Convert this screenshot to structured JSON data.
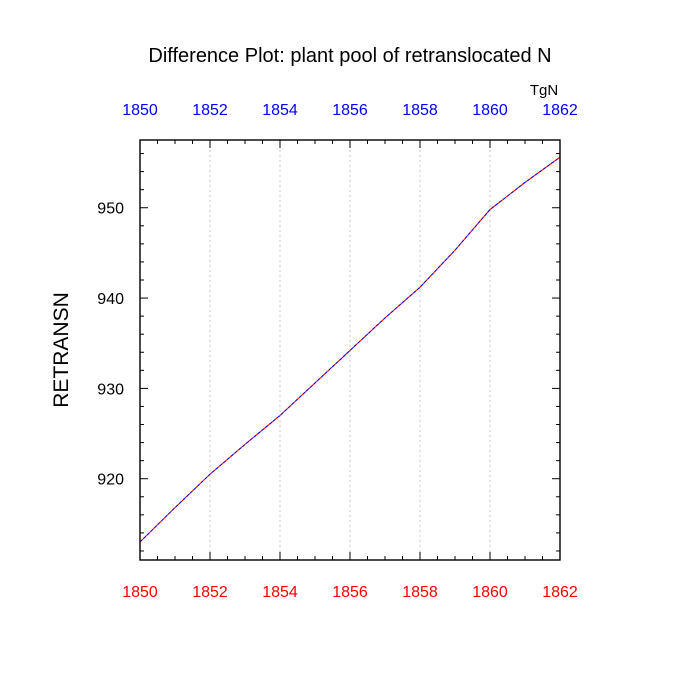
{
  "chart_data": {
    "type": "line",
    "title": "Difference Plot: plant pool of retranslocated N",
    "units": "TgN",
    "ylabel": "RETRANSN",
    "xlabel": "",
    "xlim": [
      1850,
      1862
    ],
    "ylim": [
      911,
      957.5
    ],
    "x_ticks": [
      "1850",
      "1852",
      "1854",
      "1856",
      "1858",
      "1860",
      "1862"
    ],
    "top_x_ticks": [
      "1850",
      "1852",
      "1854",
      "1856",
      "1858",
      "1860",
      "1862"
    ],
    "y_ticks": [
      "920",
      "930",
      "940",
      "950"
    ],
    "grid": "vertical dotted",
    "colors": {
      "bottom_ticks": "#ff0000",
      "top_ticks": "#0000ff",
      "line_primary": "#0000ff",
      "line_secondary": "#ff0000"
    },
    "series": [
      {
        "x": [
          1850,
          1851,
          1852,
          1853,
          1854,
          1855,
          1856,
          1857,
          1858,
          1859,
          1860,
          1861,
          1862
        ],
        "values": [
          913.0,
          916.8,
          920.5,
          923.8,
          927.0,
          930.6,
          934.2,
          937.8,
          941.2,
          945.3,
          949.8,
          952.8,
          955.6
        ]
      }
    ]
  }
}
